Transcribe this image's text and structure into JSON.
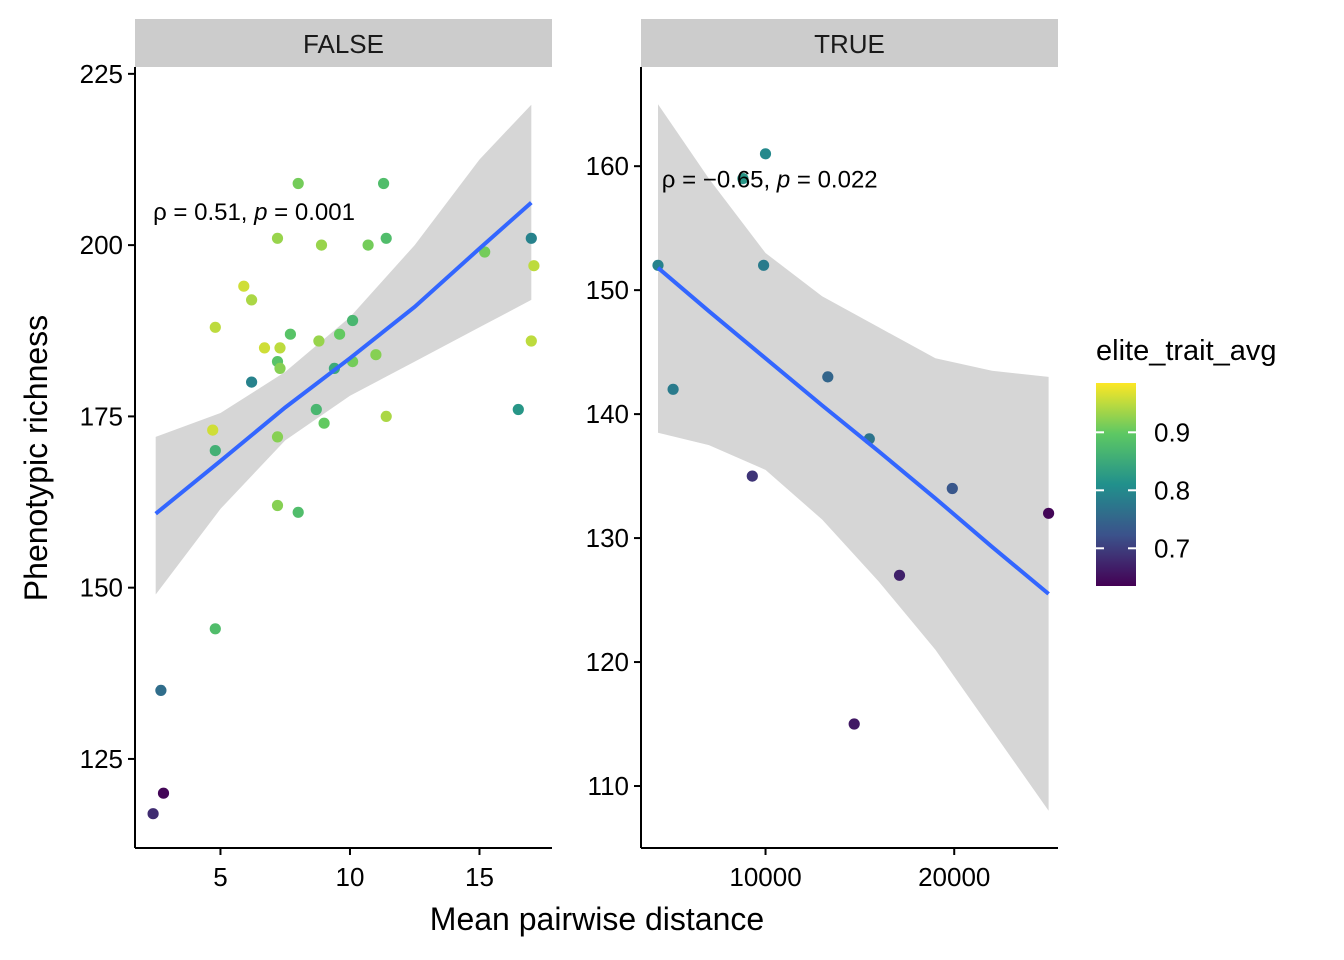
{
  "chart_data": {
    "type": "scatter",
    "xlabel": "Mean pairwise distance",
    "ylabel": "Phenotypic richness",
    "colorscale": {
      "title": "elite_trait_avg",
      "range": [
        0.635,
        0.985
      ],
      "ticks": [
        "0.7",
        "0.8",
        "0.9"
      ],
      "tick_values": [
        0.7,
        0.8,
        0.9
      ],
      "palette": [
        "#440154",
        "#3B528B",
        "#21908C",
        "#5DC863",
        "#FDE725"
      ]
    },
    "panels": [
      {
        "strip": "FALSE",
        "xlim": [
          1.7,
          17.8
        ],
        "ylim": [
          112,
          226
        ],
        "xticks": [
          5,
          10,
          15
        ],
        "xtick_labels": [
          "5",
          "10",
          "15"
        ],
        "yticks": [
          125,
          150,
          175,
          200,
          225
        ],
        "ytick_labels": [
          "125",
          "150",
          "175",
          "200",
          "225"
        ],
        "annotation": {
          "prefix": "ρ = 0.51, ",
          "p": "p",
          "suffix": " = 0.001",
          "x": 2.4,
          "y": 205
        },
        "fit": {
          "line_color": "#3366FF",
          "ribbon_color": "#D6D6D6",
          "x": [
            2.5,
            5.0,
            7.5,
            10.0,
            12.5,
            15.0,
            17.0
          ],
          "fit": [
            160.8,
            168.5,
            176.3,
            183.5,
            191.0,
            199.5,
            206.2
          ],
          "lower": [
            149.0,
            161.5,
            171.5,
            178.0,
            183.0,
            188.0,
            192.0
          ],
          "upper": [
            172.0,
            175.5,
            181.5,
            189.5,
            200.0,
            212.5,
            220.5
          ]
        },
        "points": [
          {
            "x": 2.4,
            "y": 117,
            "c": 0.68
          },
          {
            "x": 2.7,
            "y": 135,
            "c": 0.76
          },
          {
            "x": 2.8,
            "y": 120,
            "c": 0.64
          },
          {
            "x": 4.7,
            "y": 173,
            "c": 0.96
          },
          {
            "x": 4.8,
            "y": 188,
            "c": 0.95
          },
          {
            "x": 4.8,
            "y": 170,
            "c": 0.86
          },
          {
            "x": 4.8,
            "y": 144,
            "c": 0.88
          },
          {
            "x": 5.9,
            "y": 194,
            "c": 0.96
          },
          {
            "x": 6.2,
            "y": 192,
            "c": 0.94
          },
          {
            "x": 6.2,
            "y": 180,
            "c": 0.79
          },
          {
            "x": 6.7,
            "y": 185,
            "c": 0.96
          },
          {
            "x": 7.2,
            "y": 201,
            "c": 0.93
          },
          {
            "x": 7.2,
            "y": 183,
            "c": 0.89
          },
          {
            "x": 7.2,
            "y": 172,
            "c": 0.92
          },
          {
            "x": 7.2,
            "y": 162,
            "c": 0.92
          },
          {
            "x": 7.3,
            "y": 185,
            "c": 0.95
          },
          {
            "x": 7.3,
            "y": 182,
            "c": 0.92
          },
          {
            "x": 7.7,
            "y": 187,
            "c": 0.89
          },
          {
            "x": 8.0,
            "y": 209,
            "c": 0.91
          },
          {
            "x": 8.0,
            "y": 161,
            "c": 0.88
          },
          {
            "x": 8.7,
            "y": 176,
            "c": 0.87
          },
          {
            "x": 8.8,
            "y": 186,
            "c": 0.93
          },
          {
            "x": 8.9,
            "y": 200,
            "c": 0.93
          },
          {
            "x": 9.0,
            "y": 174,
            "c": 0.9
          },
          {
            "x": 9.4,
            "y": 182,
            "c": 0.85
          },
          {
            "x": 9.6,
            "y": 187,
            "c": 0.9
          },
          {
            "x": 10.1,
            "y": 189,
            "c": 0.87
          },
          {
            "x": 10.1,
            "y": 183,
            "c": 0.91
          },
          {
            "x": 10.7,
            "y": 200,
            "c": 0.91
          },
          {
            "x": 11.0,
            "y": 184,
            "c": 0.92
          },
          {
            "x": 11.3,
            "y": 209,
            "c": 0.88
          },
          {
            "x": 11.4,
            "y": 201,
            "c": 0.88
          },
          {
            "x": 11.4,
            "y": 175,
            "c": 0.94
          },
          {
            "x": 15.2,
            "y": 199,
            "c": 0.91
          },
          {
            "x": 16.5,
            "y": 176,
            "c": 0.82
          },
          {
            "x": 17.0,
            "y": 201,
            "c": 0.79
          },
          {
            "x": 17.0,
            "y": 186,
            "c": 0.95
          },
          {
            "x": 17.1,
            "y": 197,
            "c": 0.95
          }
        ]
      },
      {
        "strip": "TRUE",
        "xlim": [
          3400,
          25500
        ],
        "ylim": [
          105,
          168
        ],
        "xticks": [
          10000,
          20000
        ],
        "xtick_labels": [
          "10000",
          "20000"
        ],
        "yticks": [
          110,
          120,
          130,
          140,
          150,
          160
        ],
        "ytick_labels": [
          "110",
          "120",
          "130",
          "140",
          "150",
          "160"
        ],
        "annotation": {
          "prefix": "ρ = −0.65, ",
          "p": "p",
          "suffix": " = 0.022",
          "x": 4500,
          "y": 159
        },
        "fit": {
          "line_color": "#3366FF",
          "ribbon_color": "#D6D6D6",
          "x": [
            4300,
            7000,
            10000,
            13000,
            16000,
            19000,
            22000,
            25000
          ],
          "fit": [
            151.8,
            148.3,
            144.5,
            140.7,
            137.0,
            133.2,
            129.3,
            125.5
          ],
          "lower": [
            138.5,
            137.5,
            135.5,
            131.5,
            126.5,
            121.0,
            114.5,
            108.0
          ],
          "upper": [
            165.0,
            159.0,
            153.0,
            149.5,
            147.0,
            144.5,
            143.5,
            143.0
          ]
        },
        "points": [
          {
            "x": 4300,
            "y": 152,
            "c": 0.79
          },
          {
            "x": 5100,
            "y": 142,
            "c": 0.78
          },
          {
            "x": 8800,
            "y": 159,
            "c": 0.82
          },
          {
            "x": 9300,
            "y": 135,
            "c": 0.69
          },
          {
            "x": 9900,
            "y": 152,
            "c": 0.78
          },
          {
            "x": 10000,
            "y": 161,
            "c": 0.8
          },
          {
            "x": 13300,
            "y": 143,
            "c": 0.75
          },
          {
            "x": 14700,
            "y": 115,
            "c": 0.66
          },
          {
            "x": 15500,
            "y": 138,
            "c": 0.77
          },
          {
            "x": 17100,
            "y": 127,
            "c": 0.67
          },
          {
            "x": 19900,
            "y": 134,
            "c": 0.73
          },
          {
            "x": 25000,
            "y": 132,
            "c": 0.64
          }
        ]
      }
    ]
  }
}
